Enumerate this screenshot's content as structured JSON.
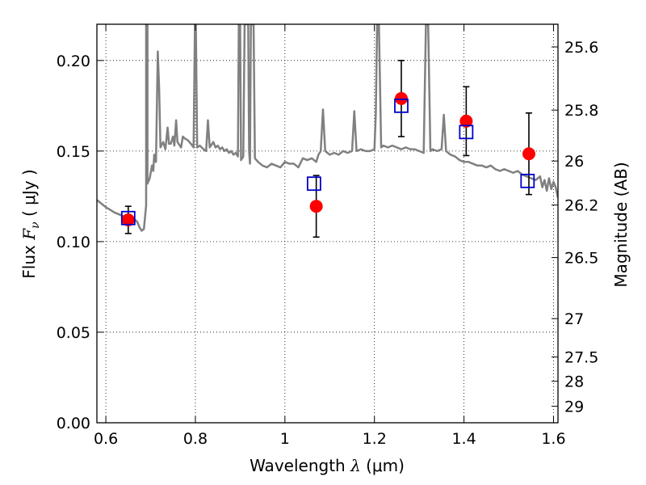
{
  "chart_data": {
    "type": "scatter",
    "xlabel": "Wavelength  λ (μm)",
    "ylabel": "Flux  F_ν  ( μJy )",
    "ylabel_parts": {
      "prefix": "Flux  ",
      "symbol": "F",
      "subscript": "ν",
      "suffix": "  ( μJy )"
    },
    "xlabel_parts": {
      "prefix": "Wavelength  ",
      "symbol": "λ",
      "suffix": " (μm)"
    },
    "y2label": "Magnitude (AB)",
    "xlim": [
      0.58,
      1.61
    ],
    "ylim": [
      0.0,
      0.22
    ],
    "grid": true,
    "x_ticks": [
      {
        "value": 0.6,
        "label": "0.6"
      },
      {
        "value": 0.8,
        "label": "0.8"
      },
      {
        "value": 1.0,
        "label": "1"
      },
      {
        "value": 1.2,
        "label": "1.2"
      },
      {
        "value": 1.4,
        "label": "1.4"
      },
      {
        "value": 1.6,
        "label": "1.6"
      }
    ],
    "y_ticks": [
      {
        "value": 0.0,
        "label": "0.00"
      },
      {
        "value": 0.05,
        "label": "0.05"
      },
      {
        "value": 0.1,
        "label": "0.10"
      },
      {
        "value": 0.15,
        "label": "0.15"
      },
      {
        "value": 0.2,
        "label": "0.20"
      }
    ],
    "y2_ticks": [
      {
        "flux": 0.2075,
        "label": "25.6"
      },
      {
        "flux": 0.1726,
        "label": "25.8"
      },
      {
        "flux": 0.1445,
        "label": "26"
      },
      {
        "flux": 0.1202,
        "label": "26.2"
      },
      {
        "flux": 0.0912,
        "label": "26.5"
      },
      {
        "flux": 0.0575,
        "label": "27"
      },
      {
        "flux": 0.0363,
        "label": "27.5"
      },
      {
        "flux": 0.0229,
        "label": "28"
      },
      {
        "flux": 0.0091,
        "label": "29"
      }
    ],
    "series": [
      {
        "kind": "line",
        "color": "#808080",
        "points": [
          [
            0.58,
            0.123
          ],
          [
            0.6,
            0.119
          ],
          [
            0.62,
            0.116
          ],
          [
            0.64,
            0.114
          ],
          [
            0.66,
            0.113
          ],
          [
            0.67,
            0.111
          ],
          [
            0.675,
            0.108
          ],
          [
            0.68,
            0.106
          ],
          [
            0.685,
            0.107
          ],
          [
            0.69,
            0.12
          ],
          [
            0.69,
            0.22
          ],
          [
            0.693,
            0.22
          ],
          [
            0.693,
            0.132
          ],
          [
            0.698,
            0.135
          ],
          [
            0.703,
            0.142
          ],
          [
            0.706,
            0.139
          ],
          [
            0.708,
            0.148
          ],
          [
            0.712,
            0.144
          ],
          [
            0.716,
            0.205
          ],
          [
            0.719,
            0.185
          ],
          [
            0.722,
            0.152
          ],
          [
            0.728,
            0.155
          ],
          [
            0.733,
            0.151
          ],
          [
            0.738,
            0.163
          ],
          [
            0.741,
            0.154
          ],
          [
            0.745,
            0.154
          ],
          [
            0.75,
            0.158
          ],
          [
            0.753,
            0.153
          ],
          [
            0.757,
            0.167
          ],
          [
            0.76,
            0.155
          ],
          [
            0.768,
            0.152
          ],
          [
            0.772,
            0.158
          ],
          [
            0.776,
            0.157
          ],
          [
            0.783,
            0.156
          ],
          [
            0.79,
            0.154
          ],
          [
            0.796,
            0.152
          ],
          [
            0.799,
            0.22
          ],
          [
            0.801,
            0.22
          ],
          [
            0.804,
            0.152
          ],
          [
            0.81,
            0.153
          ],
          [
            0.818,
            0.151
          ],
          [
            0.824,
            0.15
          ],
          [
            0.828,
            0.167
          ],
          [
            0.832,
            0.152
          ],
          [
            0.84,
            0.155
          ],
          [
            0.845,
            0.152
          ],
          [
            0.85,
            0.153
          ],
          [
            0.855,
            0.151
          ],
          [
            0.86,
            0.152
          ],
          [
            0.865,
            0.15
          ],
          [
            0.87,
            0.151
          ],
          [
            0.875,
            0.149
          ],
          [
            0.88,
            0.15
          ],
          [
            0.885,
            0.148
          ],
          [
            0.89,
            0.149
          ],
          [
            0.895,
            0.147
          ],
          [
            0.897,
            0.22
          ],
          [
            0.9,
            0.22
          ],
          [
            0.902,
            0.145
          ],
          [
            0.907,
            0.147
          ],
          [
            0.91,
            0.22
          ],
          [
            0.918,
            0.22
          ],
          [
            0.92,
            0.15
          ],
          [
            0.922,
            0.143
          ],
          [
            0.924,
            0.22
          ],
          [
            0.93,
            0.22
          ],
          [
            0.933,
            0.146
          ],
          [
            0.94,
            0.144
          ],
          [
            0.95,
            0.142
          ],
          [
            0.96,
            0.141
          ],
          [
            0.97,
            0.143
          ],
          [
            0.98,
            0.142
          ],
          [
            0.99,
            0.141
          ],
          [
            1.0,
            0.144
          ],
          [
            1.01,
            0.143
          ],
          [
            1.02,
            0.143
          ],
          [
            1.03,
            0.141
          ],
          [
            1.04,
            0.146
          ],
          [
            1.05,
            0.145
          ],
          [
            1.06,
            0.146
          ],
          [
            1.07,
            0.144
          ],
          [
            1.075,
            0.148
          ],
          [
            1.08,
            0.15
          ],
          [
            1.085,
            0.173
          ],
          [
            1.09,
            0.15
          ],
          [
            1.1,
            0.148
          ],
          [
            1.11,
            0.149
          ],
          [
            1.12,
            0.148
          ],
          [
            1.13,
            0.15
          ],
          [
            1.14,
            0.149
          ],
          [
            1.15,
            0.15
          ],
          [
            1.155,
            0.172
          ],
          [
            1.16,
            0.15
          ],
          [
            1.17,
            0.151
          ],
          [
            1.18,
            0.15
          ],
          [
            1.19,
            0.15
          ],
          [
            1.2,
            0.151
          ],
          [
            1.203,
            0.17
          ],
          [
            1.206,
            0.22
          ],
          [
            1.21,
            0.22
          ],
          [
            1.215,
            0.152
          ],
          [
            1.22,
            0.153
          ],
          [
            1.23,
            0.152
          ],
          [
            1.24,
            0.153
          ],
          [
            1.25,
            0.152
          ],
          [
            1.26,
            0.151
          ],
          [
            1.27,
            0.152
          ],
          [
            1.28,
            0.151
          ],
          [
            1.29,
            0.151
          ],
          [
            1.3,
            0.15
          ],
          [
            1.31,
            0.149
          ],
          [
            1.315,
            0.22
          ],
          [
            1.32,
            0.22
          ],
          [
            1.325,
            0.15
          ],
          [
            1.33,
            0.151
          ],
          [
            1.34,
            0.15
          ],
          [
            1.35,
            0.151
          ],
          [
            1.355,
            0.17
          ],
          [
            1.36,
            0.15
          ],
          [
            1.37,
            0.148
          ],
          [
            1.38,
            0.147
          ],
          [
            1.39,
            0.145
          ],
          [
            1.4,
            0.144
          ],
          [
            1.41,
            0.144
          ],
          [
            1.42,
            0.143
          ],
          [
            1.43,
            0.142
          ],
          [
            1.44,
            0.142
          ],
          [
            1.45,
            0.141
          ],
          [
            1.46,
            0.142
          ],
          [
            1.47,
            0.14
          ],
          [
            1.48,
            0.139
          ],
          [
            1.49,
            0.14
          ],
          [
            1.5,
            0.139
          ],
          [
            1.51,
            0.138
          ],
          [
            1.52,
            0.139
          ],
          [
            1.53,
            0.137
          ],
          [
            1.54,
            0.136
          ],
          [
            1.55,
            0.135
          ],
          [
            1.56,
            0.134
          ],
          [
            1.57,
            0.136
          ],
          [
            1.575,
            0.13
          ],
          [
            1.58,
            0.134
          ],
          [
            1.585,
            0.128
          ],
          [
            1.59,
            0.135
          ],
          [
            1.595,
            0.129
          ],
          [
            1.6,
            0.133
          ],
          [
            1.605,
            0.13
          ],
          [
            1.61,
            0.124
          ]
        ]
      },
      {
        "kind": "errorbar",
        "marker": "circle",
        "color": "#ff0000",
        "points": [
          {
            "x": 0.65,
            "y": 0.112,
            "yerr": 0.0075
          },
          {
            "x": 1.07,
            "y": 0.1195,
            "yerr": 0.017
          },
          {
            "x": 1.26,
            "y": 0.179,
            "yerr": 0.021
          },
          {
            "x": 1.405,
            "y": 0.1665,
            "yerr": 0.019
          },
          {
            "x": 1.545,
            "y": 0.1485,
            "yerr": 0.0225
          }
        ]
      },
      {
        "kind": "scatter",
        "marker": "square-open",
        "color": "#0000cc",
        "points": [
          {
            "x": 0.65,
            "y": 0.113
          },
          {
            "x": 1.065,
            "y": 0.132
          },
          {
            "x": 1.26,
            "y": 0.175
          },
          {
            "x": 1.405,
            "y": 0.1605
          },
          {
            "x": 1.542,
            "y": 0.1335
          }
        ]
      }
    ]
  }
}
